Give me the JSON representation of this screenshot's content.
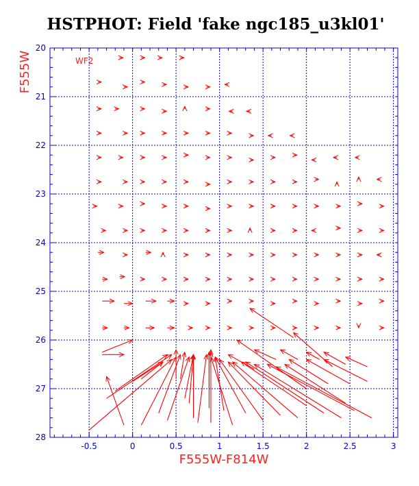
{
  "chart_data": {
    "type": "vector-field",
    "title": "HSTPHOT: Field 'fake ngc185_u3kl01'",
    "xlabel": "F555W-F814W",
    "ylabel": "F555W",
    "panel_label": "WF2",
    "xlim": [
      -0.95,
      3.05
    ],
    "ylim": [
      28,
      20
    ],
    "x_ticks": [
      "-0.5",
      "0",
      "0.5",
      "1",
      "1.5",
      "2",
      "2.5",
      "3"
    ],
    "x_tick_values": [
      -0.5,
      0,
      0.5,
      1,
      1.5,
      2,
      2.5,
      3
    ],
    "y_ticks": [
      "20",
      "21",
      "22",
      "23",
      "24",
      "25",
      "26",
      "27",
      "28"
    ],
    "y_tick_values": [
      20,
      21,
      22,
      23,
      24,
      25,
      26,
      27,
      28
    ],
    "grid": true,
    "colors": {
      "axes": "#0000cc",
      "grid": "#0000cc",
      "vectors": "#ff0000",
      "labels": "#ff2020",
      "title": "#000000"
    },
    "vectors": [
      {
        "x": -0.15,
        "y": 20.2,
        "dx": 0.04,
        "dy": 0.0
      },
      {
        "x": 0.1,
        "y": 20.2,
        "dx": 0.04,
        "dy": 0.0
      },
      {
        "x": 0.3,
        "y": 20.2,
        "dx": 0.04,
        "dy": 0.0
      },
      {
        "x": 0.55,
        "y": 20.2,
        "dx": 0.04,
        "dy": 0.0
      },
      {
        "x": -0.4,
        "y": 20.7,
        "dx": 0.04,
        "dy": 0.0
      },
      {
        "x": -0.1,
        "y": 20.8,
        "dx": 0.04,
        "dy": 0.0
      },
      {
        "x": 0.1,
        "y": 20.7,
        "dx": 0.04,
        "dy": 0.0
      },
      {
        "x": 0.35,
        "y": 20.75,
        "dx": 0.04,
        "dy": 0.0
      },
      {
        "x": 0.6,
        "y": 20.8,
        "dx": 0.04,
        "dy": 0.0
      },
      {
        "x": 0.85,
        "y": 20.8,
        "dx": 0.04,
        "dy": 0.0
      },
      {
        "x": 1.1,
        "y": 20.75,
        "dx": -0.04,
        "dy": 0.0
      },
      {
        "x": -0.4,
        "y": 21.25,
        "dx": 0.04,
        "dy": 0.0
      },
      {
        "x": -0.2,
        "y": 21.25,
        "dx": 0.04,
        "dy": 0.0
      },
      {
        "x": 0.1,
        "y": 21.25,
        "dx": 0.04,
        "dy": 0.0
      },
      {
        "x": 0.35,
        "y": 21.3,
        "dx": 0.04,
        "dy": 0.0
      },
      {
        "x": 0.6,
        "y": 21.25,
        "dx": 0.0,
        "dy": -0.05
      },
      {
        "x": 0.85,
        "y": 21.25,
        "dx": 0.04,
        "dy": 0.0
      },
      {
        "x": 1.15,
        "y": 21.3,
        "dx": -0.04,
        "dy": 0.0
      },
      {
        "x": 1.35,
        "y": 21.3,
        "dx": -0.04,
        "dy": 0.0
      },
      {
        "x": -0.4,
        "y": 21.75,
        "dx": 0.04,
        "dy": 0.0
      },
      {
        "x": -0.1,
        "y": 21.75,
        "dx": 0.04,
        "dy": 0.0
      },
      {
        "x": 0.1,
        "y": 21.75,
        "dx": 0.04,
        "dy": 0.0
      },
      {
        "x": 0.35,
        "y": 21.75,
        "dx": 0.04,
        "dy": 0.0
      },
      {
        "x": 0.6,
        "y": 21.75,
        "dx": 0.04,
        "dy": 0.0
      },
      {
        "x": 0.85,
        "y": 21.75,
        "dx": 0.04,
        "dy": 0.0
      },
      {
        "x": 1.1,
        "y": 21.75,
        "dx": 0.04,
        "dy": 0.0
      },
      {
        "x": 1.35,
        "y": 21.8,
        "dx": 0.04,
        "dy": 0.0
      },
      {
        "x": 1.6,
        "y": 21.8,
        "dx": -0.04,
        "dy": 0.0
      },
      {
        "x": 1.85,
        "y": 21.8,
        "dx": -0.04,
        "dy": 0.0
      },
      {
        "x": -0.4,
        "y": 22.25,
        "dx": 0.04,
        "dy": 0.0
      },
      {
        "x": -0.15,
        "y": 22.25,
        "dx": 0.04,
        "dy": 0.0
      },
      {
        "x": 0.1,
        "y": 22.25,
        "dx": 0.04,
        "dy": 0.0
      },
      {
        "x": 0.35,
        "y": 22.25,
        "dx": 0.04,
        "dy": 0.0
      },
      {
        "x": 0.6,
        "y": 22.2,
        "dx": 0.04,
        "dy": 0.0
      },
      {
        "x": 0.85,
        "y": 22.25,
        "dx": 0.04,
        "dy": 0.0
      },
      {
        "x": 1.1,
        "y": 22.25,
        "dx": 0.04,
        "dy": 0.0
      },
      {
        "x": 1.35,
        "y": 22.3,
        "dx": 0.04,
        "dy": 0.0
      },
      {
        "x": 1.6,
        "y": 22.25,
        "dx": 0.04,
        "dy": 0.0
      },
      {
        "x": 1.85,
        "y": 22.2,
        "dx": 0.04,
        "dy": 0.0
      },
      {
        "x": 2.1,
        "y": 22.3,
        "dx": -0.04,
        "dy": 0.0
      },
      {
        "x": 2.35,
        "y": 22.25,
        "dx": -0.04,
        "dy": 0.0
      },
      {
        "x": 2.6,
        "y": 22.25,
        "dx": -0.04,
        "dy": 0.0
      },
      {
        "x": -0.4,
        "y": 22.75,
        "dx": 0.04,
        "dy": 0.0
      },
      {
        "x": -0.1,
        "y": 22.75,
        "dx": 0.04,
        "dy": 0.0
      },
      {
        "x": 0.1,
        "y": 22.75,
        "dx": 0.04,
        "dy": 0.0
      },
      {
        "x": 0.35,
        "y": 22.75,
        "dx": 0.04,
        "dy": 0.0
      },
      {
        "x": 0.6,
        "y": 22.75,
        "dx": 0.04,
        "dy": 0.0
      },
      {
        "x": 0.85,
        "y": 22.8,
        "dx": 0.04,
        "dy": 0.0
      },
      {
        "x": 1.1,
        "y": 22.75,
        "dx": 0.04,
        "dy": 0.0
      },
      {
        "x": 1.35,
        "y": 22.75,
        "dx": 0.04,
        "dy": 0.0
      },
      {
        "x": 1.6,
        "y": 22.75,
        "dx": 0.04,
        "dy": 0.0
      },
      {
        "x": 1.85,
        "y": 22.75,
        "dx": 0.04,
        "dy": 0.0
      },
      {
        "x": 2.1,
        "y": 22.7,
        "dx": 0.04,
        "dy": 0.0
      },
      {
        "x": 2.35,
        "y": 22.8,
        "dx": 0.0,
        "dy": -0.05
      },
      {
        "x": 2.6,
        "y": 22.7,
        "dx": 0.0,
        "dy": -0.05
      },
      {
        "x": 2.85,
        "y": 22.7,
        "dx": -0.04,
        "dy": 0.0
      },
      {
        "x": -0.45,
        "y": 23.25,
        "dx": 0.04,
        "dy": 0.0
      },
      {
        "x": -0.15,
        "y": 23.25,
        "dx": 0.04,
        "dy": 0.0
      },
      {
        "x": 0.1,
        "y": 23.2,
        "dx": 0.04,
        "dy": 0.0
      },
      {
        "x": 0.35,
        "y": 23.25,
        "dx": 0.04,
        "dy": 0.0
      },
      {
        "x": 0.6,
        "y": 23.25,
        "dx": 0.04,
        "dy": 0.0
      },
      {
        "x": 0.85,
        "y": 23.3,
        "dx": 0.04,
        "dy": 0.0
      },
      {
        "x": 1.1,
        "y": 23.25,
        "dx": 0.04,
        "dy": 0.0
      },
      {
        "x": 1.35,
        "y": 23.25,
        "dx": 0.04,
        "dy": 0.0
      },
      {
        "x": 1.6,
        "y": 23.25,
        "dx": 0.04,
        "dy": 0.0
      },
      {
        "x": 1.85,
        "y": 23.25,
        "dx": 0.04,
        "dy": 0.0
      },
      {
        "x": 2.1,
        "y": 23.25,
        "dx": 0.04,
        "dy": 0.0
      },
      {
        "x": 2.35,
        "y": 23.25,
        "dx": 0.04,
        "dy": 0.0
      },
      {
        "x": 2.6,
        "y": 23.2,
        "dx": 0.04,
        "dy": 0.0
      },
      {
        "x": 2.85,
        "y": 23.25,
        "dx": 0.04,
        "dy": 0.0
      },
      {
        "x": -0.35,
        "y": 23.75,
        "dx": 0.04,
        "dy": 0.0
      },
      {
        "x": -0.1,
        "y": 23.75,
        "dx": 0.04,
        "dy": 0.0
      },
      {
        "x": 0.1,
        "y": 23.75,
        "dx": 0.04,
        "dy": 0.0
      },
      {
        "x": 0.35,
        "y": 23.75,
        "dx": 0.04,
        "dy": 0.0
      },
      {
        "x": 0.6,
        "y": 23.75,
        "dx": 0.04,
        "dy": 0.0
      },
      {
        "x": 0.85,
        "y": 23.75,
        "dx": 0.04,
        "dy": 0.0
      },
      {
        "x": 1.1,
        "y": 23.75,
        "dx": 0.04,
        "dy": 0.0
      },
      {
        "x": 1.35,
        "y": 23.75,
        "dx": 0.0,
        "dy": -0.05
      },
      {
        "x": 1.6,
        "y": 23.75,
        "dx": 0.04,
        "dy": 0.0
      },
      {
        "x": 1.85,
        "y": 23.75,
        "dx": 0.04,
        "dy": 0.0
      },
      {
        "x": 2.1,
        "y": 23.75,
        "dx": -0.04,
        "dy": 0.0
      },
      {
        "x": 2.35,
        "y": 23.7,
        "dx": 0.04,
        "dy": 0.0
      },
      {
        "x": 2.6,
        "y": 23.75,
        "dx": 0.04,
        "dy": 0.0
      },
      {
        "x": 2.85,
        "y": 23.75,
        "dx": 0.04,
        "dy": 0.0
      },
      {
        "x": -0.4,
        "y": 24.2,
        "dx": 0.07,
        "dy": 0.0
      },
      {
        "x": -0.1,
        "y": 24.25,
        "dx": 0.04,
        "dy": 0.0
      },
      {
        "x": 0.15,
        "y": 24.2,
        "dx": 0.06,
        "dy": 0.0
      },
      {
        "x": 0.35,
        "y": 24.25,
        "dx": 0.0,
        "dy": -0.05
      },
      {
        "x": 0.6,
        "y": 24.25,
        "dx": 0.04,
        "dy": 0.0
      },
      {
        "x": 0.85,
        "y": 24.25,
        "dx": 0.04,
        "dy": 0.0
      },
      {
        "x": 1.1,
        "y": 24.25,
        "dx": 0.04,
        "dy": 0.0
      },
      {
        "x": 1.35,
        "y": 24.25,
        "dx": 0.04,
        "dy": 0.0
      },
      {
        "x": 1.6,
        "y": 24.25,
        "dx": 0.04,
        "dy": 0.0
      },
      {
        "x": 1.85,
        "y": 24.25,
        "dx": 0.04,
        "dy": 0.0
      },
      {
        "x": 2.1,
        "y": 24.25,
        "dx": 0.04,
        "dy": 0.0
      },
      {
        "x": 2.35,
        "y": 24.25,
        "dx": 0.04,
        "dy": 0.0
      },
      {
        "x": 2.6,
        "y": 24.25,
        "dx": 0.04,
        "dy": 0.0
      },
      {
        "x": 2.85,
        "y": 24.25,
        "dx": -0.04,
        "dy": 0.0
      },
      {
        "x": -0.35,
        "y": 24.75,
        "dx": 0.06,
        "dy": 0.0
      },
      {
        "x": -0.15,
        "y": 24.7,
        "dx": 0.06,
        "dy": 0.0
      },
      {
        "x": 0.1,
        "y": 24.75,
        "dx": 0.04,
        "dy": 0.0
      },
      {
        "x": 0.35,
        "y": 24.75,
        "dx": 0.04,
        "dy": 0.0
      },
      {
        "x": 0.6,
        "y": 24.75,
        "dx": 0.04,
        "dy": 0.0
      },
      {
        "x": 0.85,
        "y": 24.75,
        "dx": 0.04,
        "dy": 0.0
      },
      {
        "x": 1.1,
        "y": 24.75,
        "dx": 0.04,
        "dy": 0.0
      },
      {
        "x": 1.35,
        "y": 24.75,
        "dx": 0.04,
        "dy": 0.0
      },
      {
        "x": 1.6,
        "y": 24.75,
        "dx": 0.04,
        "dy": 0.0
      },
      {
        "x": 1.85,
        "y": 24.75,
        "dx": 0.04,
        "dy": 0.0
      },
      {
        "x": 2.1,
        "y": 24.75,
        "dx": 0.04,
        "dy": 0.0
      },
      {
        "x": 2.35,
        "y": 24.75,
        "dx": 0.04,
        "dy": 0.0
      },
      {
        "x": 2.6,
        "y": 24.75,
        "dx": 0.04,
        "dy": 0.0
      },
      {
        "x": 2.85,
        "y": 24.75,
        "dx": 0.04,
        "dy": 0.0
      },
      {
        "x": -0.35,
        "y": 25.2,
        "dx": 0.14,
        "dy": 0.0
      },
      {
        "x": -0.1,
        "y": 25.25,
        "dx": 0.1,
        "dy": 0.0
      },
      {
        "x": 0.15,
        "y": 25.2,
        "dx": 0.12,
        "dy": 0.0
      },
      {
        "x": 0.4,
        "y": 25.2,
        "dx": 0.08,
        "dy": 0.0
      },
      {
        "x": 0.6,
        "y": 25.25,
        "dx": 0.04,
        "dy": 0.0
      },
      {
        "x": 0.85,
        "y": 25.25,
        "dx": 0.04,
        "dy": 0.0
      },
      {
        "x": 1.1,
        "y": 25.2,
        "dx": 0.04,
        "dy": 0.0
      },
      {
        "x": 1.35,
        "y": 25.2,
        "dx": 0.04,
        "dy": 0.0
      },
      {
        "x": 1.6,
        "y": 25.25,
        "dx": 0.04,
        "dy": 0.0
      },
      {
        "x": 1.85,
        "y": 25.2,
        "dx": 0.04,
        "dy": 0.0
      },
      {
        "x": 2.1,
        "y": 25.25,
        "dx": 0.04,
        "dy": 0.0
      },
      {
        "x": 2.35,
        "y": 25.2,
        "dx": 0.04,
        "dy": 0.0
      },
      {
        "x": 2.6,
        "y": 25.25,
        "dx": 0.04,
        "dy": 0.0
      },
      {
        "x": 2.85,
        "y": 25.2,
        "dx": 0.04,
        "dy": 0.0
      },
      {
        "x": -0.35,
        "y": 25.75,
        "dx": 0.06,
        "dy": 0.0
      },
      {
        "x": -0.1,
        "y": 25.75,
        "dx": 0.06,
        "dy": 0.0
      },
      {
        "x": 0.15,
        "y": 25.75,
        "dx": 0.1,
        "dy": 0.0
      },
      {
        "x": 0.4,
        "y": 25.75,
        "dx": 0.08,
        "dy": 0.0
      },
      {
        "x": 0.65,
        "y": 25.75,
        "dx": 0.04,
        "dy": 0.0
      },
      {
        "x": 0.85,
        "y": 25.75,
        "dx": 0.04,
        "dy": 0.0
      },
      {
        "x": 1.1,
        "y": 25.75,
        "dx": 0.04,
        "dy": 0.0
      },
      {
        "x": 1.35,
        "y": 25.75,
        "dx": 0.04,
        "dy": 0.0
      },
      {
        "x": 1.6,
        "y": 25.75,
        "dx": 0.04,
        "dy": 0.0
      },
      {
        "x": 1.85,
        "y": 25.75,
        "dx": 0.04,
        "dy": 0.0
      },
      {
        "x": 2.1,
        "y": 25.75,
        "dx": 0.04,
        "dy": 0.0
      },
      {
        "x": 2.35,
        "y": 25.75,
        "dx": 0.04,
        "dy": 0.0
      },
      {
        "x": 2.6,
        "y": 25.7,
        "dx": 0.0,
        "dy": 0.05
      },
      {
        "x": 2.85,
        "y": 25.75,
        "dx": 0.04,
        "dy": 0.0
      },
      {
        "x": -0.35,
        "y": 26.25,
        "dx": 0.35,
        "dy": -0.25
      },
      {
        "x": -0.35,
        "y": 26.3,
        "dx": 0.25,
        "dy": 0.0
      },
      {
        "x": -0.5,
        "y": 27.85,
        "dx": 0.95,
        "dy": -1.45
      },
      {
        "x": -0.3,
        "y": 27.2,
        "dx": 0.75,
        "dy": -0.9
      },
      {
        "x": -0.2,
        "y": 27.05,
        "dx": 0.6,
        "dy": -0.75
      },
      {
        "x": -0.1,
        "y": 27.75,
        "dx": -0.2,
        "dy": -1.0
      },
      {
        "x": 0.0,
        "y": 26.85,
        "dx": 0.35,
        "dy": -0.4
      },
      {
        "x": 0.1,
        "y": 26.8,
        "dx": 0.25,
        "dy": -0.35
      },
      {
        "x": 0.1,
        "y": 27.75,
        "dx": 0.4,
        "dy": -1.4
      },
      {
        "x": 0.3,
        "y": 27.5,
        "dx": 0.25,
        "dy": -1.2
      },
      {
        "x": 0.4,
        "y": 27.65,
        "dx": 0.25,
        "dy": -1.3
      },
      {
        "x": 0.5,
        "y": 26.8,
        "dx": 0.0,
        "dy": -0.6
      },
      {
        "x": 0.55,
        "y": 26.8,
        "dx": 0.05,
        "dy": -0.55
      },
      {
        "x": 0.6,
        "y": 27.2,
        "dx": 0.1,
        "dy": -0.9
      },
      {
        "x": 0.65,
        "y": 27.3,
        "dx": 0.05,
        "dy": -1.0
      },
      {
        "x": 0.7,
        "y": 27.6,
        "dx": 0.0,
        "dy": -1.3
      },
      {
        "x": 0.75,
        "y": 27.7,
        "dx": 0.1,
        "dy": -1.4
      },
      {
        "x": 0.9,
        "y": 27.7,
        "dx": 0.0,
        "dy": -1.45
      },
      {
        "x": 0.88,
        "y": 27.4,
        "dx": 0.0,
        "dy": -1.15
      },
      {
        "x": 0.88,
        "y": 27.0,
        "dx": 0.0,
        "dy": -0.75
      },
      {
        "x": 0.9,
        "y": 26.6,
        "dx": 0.0,
        "dy": -0.4
      },
      {
        "x": 1.05,
        "y": 27.45,
        "dx": -0.1,
        "dy": -1.1
      },
      {
        "x": 1.15,
        "y": 27.75,
        "dx": -0.25,
        "dy": -1.4
      },
      {
        "x": 1.3,
        "y": 27.5,
        "dx": -0.35,
        "dy": -1.15
      },
      {
        "x": 1.5,
        "y": 27.65,
        "dx": -0.5,
        "dy": -1.25
      },
      {
        "x": 1.7,
        "y": 27.55,
        "dx": -0.6,
        "dy": -1.1
      },
      {
        "x": 1.9,
        "y": 27.6,
        "dx": -0.75,
        "dy": -1.15
      },
      {
        "x": 2.0,
        "y": 27.35,
        "dx": -0.75,
        "dy": -0.9
      },
      {
        "x": 2.2,
        "y": 27.5,
        "dx": -0.9,
        "dy": -1.05
      },
      {
        "x": 2.4,
        "y": 27.6,
        "dx": -1.0,
        "dy": -1.1
      },
      {
        "x": 2.55,
        "y": 27.45,
        "dx": -1.0,
        "dy": -0.95
      },
      {
        "x": 2.75,
        "y": 27.6,
        "dx": -1.1,
        "dy": -1.05
      },
      {
        "x": 2.45,
        "y": 27.3,
        "dx": -0.7,
        "dy": -0.8
      },
      {
        "x": 2.25,
        "y": 26.9,
        "dx": -0.45,
        "dy": -0.5
      },
      {
        "x": 2.5,
        "y": 26.9,
        "dx": -0.5,
        "dy": -0.5
      },
      {
        "x": 2.7,
        "y": 26.85,
        "dx": -0.5,
        "dy": -0.45
      },
      {
        "x": 2.45,
        "y": 26.5,
        "dx": -0.25,
        "dy": -0.25
      },
      {
        "x": 2.7,
        "y": 26.55,
        "dx": -0.25,
        "dy": -0.2
      },
      {
        "x": 1.4,
        "y": 26.6,
        "dx": -0.3,
        "dy": -0.3
      },
      {
        "x": 1.65,
        "y": 26.4,
        "dx": -0.25,
        "dy": -0.2
      },
      {
        "x": 1.9,
        "y": 26.4,
        "dx": -0.2,
        "dy": -0.2
      },
      {
        "x": 2.15,
        "y": 26.4,
        "dx": -0.15,
        "dy": -0.15
      },
      {
        "x": 1.85,
        "y": 25.95,
        "dx": -0.5,
        "dy": -0.6
      },
      {
        "x": 2.3,
        "y": 26.55,
        "dx": -0.45,
        "dy": -0.7
      },
      {
        "x": 2.0,
        "y": 27.0,
        "dx": -0.8,
        "dy": -1.0
      }
    ]
  }
}
